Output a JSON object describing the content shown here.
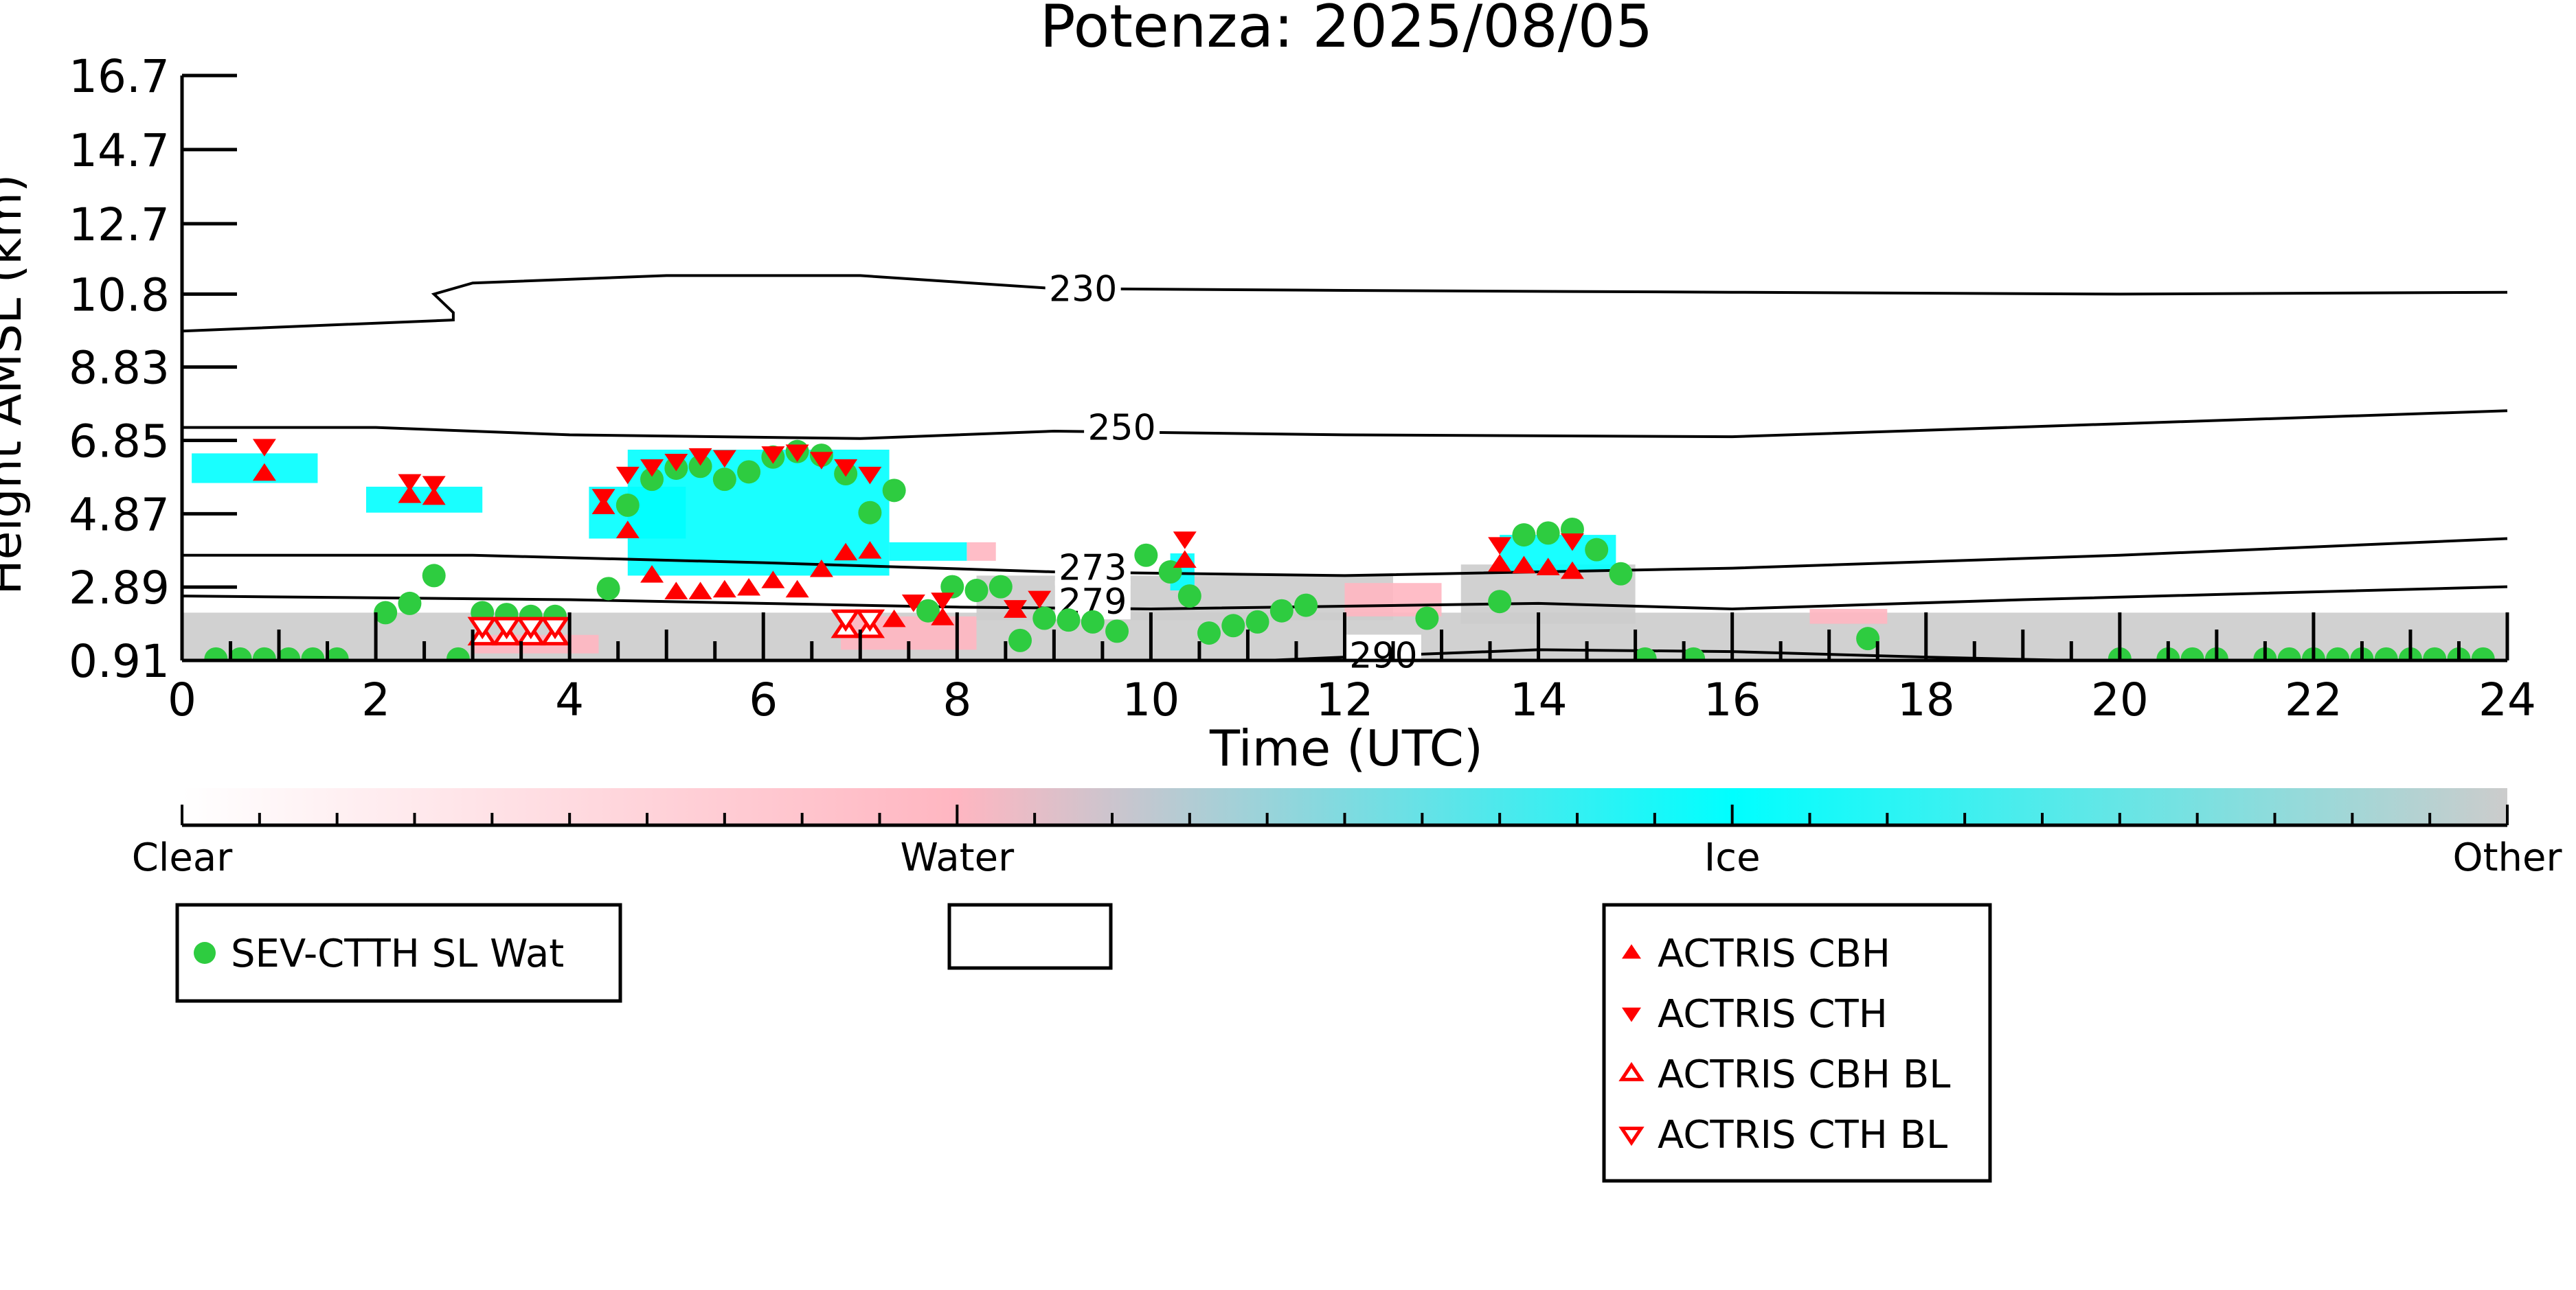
{
  "chart_data": {
    "type": "scatter",
    "title": "Potenza: 2025/08/05",
    "xlabel": "Time (UTC)",
    "ylabel": "Height AMSL (km)",
    "xlim": [
      0,
      24
    ],
    "ylim": [
      0.91,
      16.7
    ],
    "x_ticks": [
      0,
      2,
      4,
      6,
      8,
      10,
      12,
      14,
      16,
      18,
      20,
      22,
      24
    ],
    "x_tick_labels": [
      "0",
      "2",
      "4",
      "6",
      "8",
      "10",
      "12",
      "14",
      "16",
      "18",
      "20",
      "22",
      "24"
    ],
    "y_ticks": [
      0.91,
      2.89,
      4.87,
      6.85,
      8.83,
      10.8,
      12.7,
      14.7,
      16.7
    ],
    "y_tick_labels": [
      "0.91",
      "2.89",
      "4.87",
      "6.85",
      "8.83",
      "10.8",
      "12.7",
      "14.7",
      "16.7"
    ],
    "grid": false,
    "colors": {
      "ice": "#00ffff",
      "water": "#ffb6c1",
      "other": "#cccccc",
      "sev": "#2ecc40",
      "actris": "#ff0000"
    },
    "cloud_regions": [
      {
        "kind": "other",
        "x0": 0.0,
        "x1": 24.0,
        "y0": 0.91,
        "y1": 2.2
      },
      {
        "kind": "water",
        "x0": 3.0,
        "x1": 4.3,
        "y0": 1.1,
        "y1": 1.6
      },
      {
        "kind": "water",
        "x0": 6.8,
        "x1": 8.2,
        "y0": 1.2,
        "y1": 2.1
      },
      {
        "kind": "other",
        "x0": 8.2,
        "x1": 12.5,
        "y0": 2.0,
        "y1": 3.2
      },
      {
        "kind": "water",
        "x0": 12.0,
        "x1": 13.0,
        "y0": 2.1,
        "y1": 3.0
      },
      {
        "kind": "other",
        "x0": 13.2,
        "x1": 15.0,
        "y0": 1.9,
        "y1": 3.5
      },
      {
        "kind": "water",
        "x0": 16.8,
        "x1": 17.6,
        "y0": 1.9,
        "y1": 2.3
      },
      {
        "kind": "ice",
        "x0": 4.6,
        "x1": 7.3,
        "y0": 3.2,
        "y1": 6.6
      },
      {
        "kind": "ice",
        "x0": 4.2,
        "x1": 5.2,
        "y0": 4.2,
        "y1": 5.6
      },
      {
        "kind": "ice",
        "x0": 0.1,
        "x1": 1.4,
        "y0": 5.7,
        "y1": 6.5
      },
      {
        "kind": "ice",
        "x0": 1.9,
        "x1": 3.1,
        "y0": 4.9,
        "y1": 5.6
      },
      {
        "kind": "ice",
        "x0": 13.6,
        "x1": 14.8,
        "y0": 3.3,
        "y1": 4.3
      },
      {
        "kind": "ice",
        "x0": 10.2,
        "x1": 10.45,
        "y0": 2.8,
        "y1": 3.8
      },
      {
        "kind": "ice",
        "x0": 7.3,
        "x1": 8.1,
        "y0": 3.6,
        "y1": 4.1
      },
      {
        "kind": "water",
        "x0": 8.1,
        "x1": 8.4,
        "y0": 3.6,
        "y1": 4.1
      }
    ],
    "contours": [
      {
        "label": "230",
        "label_at": [
          9.3,
          10.95
        ],
        "points": [
          [
            0,
            9.8
          ],
          [
            2.8,
            10.1
          ],
          [
            2.8,
            10.3
          ],
          [
            2.6,
            10.8
          ],
          [
            3.0,
            11.1
          ],
          [
            5.0,
            11.3
          ],
          [
            7.0,
            11.3
          ],
          [
            9.0,
            10.95
          ],
          [
            12.0,
            10.9
          ],
          [
            16.0,
            10.85
          ],
          [
            20.0,
            10.8
          ],
          [
            24.0,
            10.85
          ]
        ]
      },
      {
        "label": "250",
        "label_at": [
          9.7,
          7.2
        ],
        "points": [
          [
            0,
            7.2
          ],
          [
            2.0,
            7.2
          ],
          [
            4.0,
            7.0
          ],
          [
            7.0,
            6.9
          ],
          [
            9.0,
            7.1
          ],
          [
            12.0,
            7.0
          ],
          [
            16.0,
            6.95
          ],
          [
            20.0,
            7.3
          ],
          [
            24.0,
            7.65
          ]
        ]
      },
      {
        "label": "273",
        "label_at": [
          9.4,
          3.42
        ],
        "points": [
          [
            0,
            3.75
          ],
          [
            3.0,
            3.75
          ],
          [
            6.0,
            3.55
          ],
          [
            9.0,
            3.3
          ],
          [
            12.0,
            3.2
          ],
          [
            16.0,
            3.4
          ],
          [
            20.0,
            3.75
          ],
          [
            24.0,
            4.2
          ]
        ]
      },
      {
        "label": "279",
        "label_at": [
          9.4,
          2.5
        ],
        "points": [
          [
            0,
            2.65
          ],
          [
            4.0,
            2.55
          ],
          [
            8.0,
            2.35
          ],
          [
            10.0,
            2.3
          ],
          [
            14.0,
            2.45
          ],
          [
            16.0,
            2.3
          ],
          [
            19.0,
            2.55
          ],
          [
            24.0,
            2.9
          ]
        ]
      },
      {
        "label": "290",
        "label_at": [
          12.4,
          1.05
        ],
        "points": [
          [
            11.2,
            0.91
          ],
          [
            12.0,
            1.0
          ],
          [
            14.0,
            1.2
          ],
          [
            16.0,
            1.15
          ],
          [
            18.0,
            1.0
          ],
          [
            19.5,
            0.91
          ]
        ]
      }
    ],
    "series": [
      {
        "name": "SEV-CTTH SL Wat",
        "marker": "circle",
        "points": [
          [
            0.35,
            0.95
          ],
          [
            0.6,
            0.95
          ],
          [
            0.85,
            0.95
          ],
          [
            1.1,
            0.95
          ],
          [
            1.35,
            0.95
          ],
          [
            1.6,
            0.95
          ],
          [
            2.1,
            2.2
          ],
          [
            2.35,
            2.45
          ],
          [
            2.6,
            3.2
          ],
          [
            2.85,
            0.95
          ],
          [
            3.1,
            2.2
          ],
          [
            3.35,
            2.15
          ],
          [
            3.6,
            2.1
          ],
          [
            3.85,
            2.1
          ],
          [
            4.4,
            2.85
          ],
          [
            4.6,
            5.1
          ],
          [
            4.85,
            5.8
          ],
          [
            5.1,
            6.1
          ],
          [
            5.35,
            6.15
          ],
          [
            5.6,
            5.8
          ],
          [
            5.85,
            6.0
          ],
          [
            6.1,
            6.4
          ],
          [
            6.35,
            6.55
          ],
          [
            6.6,
            6.45
          ],
          [
            6.85,
            5.95
          ],
          [
            7.35,
            5.5
          ],
          [
            7.1,
            4.9
          ],
          [
            7.95,
            2.9
          ],
          [
            8.2,
            2.8
          ],
          [
            8.45,
            2.9
          ],
          [
            7.7,
            2.25
          ],
          [
            8.65,
            1.45
          ],
          [
            8.9,
            2.05
          ],
          [
            9.15,
            2.0
          ],
          [
            9.4,
            1.95
          ],
          [
            9.65,
            1.7
          ],
          [
            9.95,
            3.75
          ],
          [
            10.2,
            3.3
          ],
          [
            10.4,
            2.65
          ],
          [
            10.6,
            1.65
          ],
          [
            10.85,
            1.85
          ],
          [
            11.1,
            1.95
          ],
          [
            11.35,
            2.25
          ],
          [
            11.6,
            2.4
          ],
          [
            12.85,
            2.05
          ],
          [
            13.6,
            2.5
          ],
          [
            13.85,
            4.3
          ],
          [
            14.1,
            4.35
          ],
          [
            14.35,
            4.45
          ],
          [
            14.6,
            3.9
          ],
          [
            14.85,
            3.25
          ],
          [
            15.1,
            0.95
          ],
          [
            15.6,
            0.95
          ],
          [
            17.4,
            1.5
          ],
          [
            20.0,
            0.95
          ],
          [
            20.5,
            0.95
          ],
          [
            20.75,
            0.95
          ],
          [
            21.0,
            0.95
          ],
          [
            21.5,
            0.95
          ],
          [
            21.75,
            0.95
          ],
          [
            22.0,
            0.95
          ],
          [
            22.25,
            0.95
          ],
          [
            22.5,
            0.95
          ],
          [
            22.75,
            0.95
          ],
          [
            23.0,
            0.95
          ],
          [
            23.25,
            0.95
          ],
          [
            23.5,
            0.95
          ],
          [
            23.75,
            0.95
          ]
        ]
      },
      {
        "name": "ACTRIS CBH",
        "marker": "triangle-up",
        "points": [
          [
            0.85,
            5.95
          ],
          [
            2.35,
            5.35
          ],
          [
            2.6,
            5.3
          ],
          [
            4.35,
            5.05
          ],
          [
            4.6,
            4.4
          ],
          [
            4.85,
            3.2
          ],
          [
            5.1,
            2.75
          ],
          [
            5.35,
            2.75
          ],
          [
            5.6,
            2.8
          ],
          [
            5.85,
            2.85
          ],
          [
            6.1,
            3.05
          ],
          [
            6.35,
            2.8
          ],
          [
            6.6,
            3.35
          ],
          [
            6.85,
            3.8
          ],
          [
            7.1,
            3.85
          ],
          [
            7.35,
            2.0
          ],
          [
            7.85,
            2.05
          ],
          [
            8.6,
            2.25
          ],
          [
            10.35,
            3.6
          ],
          [
            13.6,
            3.5
          ],
          [
            13.85,
            3.45
          ],
          [
            14.1,
            3.4
          ],
          [
            14.35,
            3.3
          ]
        ]
      },
      {
        "name": "ACTRIS CTH",
        "marker": "triangle-down",
        "points": [
          [
            0.85,
            6.7
          ],
          [
            2.35,
            5.75
          ],
          [
            2.6,
            5.7
          ],
          [
            4.35,
            5.35
          ],
          [
            4.6,
            5.95
          ],
          [
            4.85,
            6.15
          ],
          [
            5.1,
            6.3
          ],
          [
            5.35,
            6.45
          ],
          [
            5.6,
            6.4
          ],
          [
            6.1,
            6.5
          ],
          [
            6.35,
            6.55
          ],
          [
            6.6,
            6.35
          ],
          [
            6.85,
            6.15
          ],
          [
            7.1,
            5.95
          ],
          [
            7.55,
            2.5
          ],
          [
            7.85,
            2.55
          ],
          [
            8.6,
            2.35
          ],
          [
            8.85,
            2.6
          ],
          [
            10.35,
            4.2
          ],
          [
            13.6,
            4.05
          ],
          [
            14.35,
            4.15
          ]
        ]
      },
      {
        "name": "ACTRIS CBH BL",
        "marker": "triangle-up-open",
        "points": [
          [
            3.1,
            1.55
          ],
          [
            3.35,
            1.55
          ],
          [
            3.6,
            1.55
          ],
          [
            3.85,
            1.55
          ],
          [
            6.85,
            1.75
          ],
          [
            7.1,
            1.75
          ]
        ]
      },
      {
        "name": "ACTRIS CTH BL",
        "marker": "triangle-down-open",
        "points": [
          [
            3.1,
            1.85
          ],
          [
            3.35,
            1.85
          ],
          [
            3.6,
            1.85
          ],
          [
            3.85,
            1.85
          ],
          [
            6.85,
            2.05
          ],
          [
            7.1,
            2.05
          ]
        ]
      }
    ],
    "colorbar": {
      "labels": [
        "Clear",
        "Water",
        "Ice",
        "Other"
      ],
      "stops": [
        {
          "pos": 0.0,
          "color": "#ffffff"
        },
        {
          "pos": 0.333,
          "color": "#ffb6c1"
        },
        {
          "pos": 0.667,
          "color": "#00ffff"
        },
        {
          "pos": 1.0,
          "color": "#cccccc"
        }
      ]
    },
    "legends": [
      {
        "position": "bottom-left",
        "entries": [
          "SEV-CTTH SL Wat"
        ]
      },
      {
        "position": "bottom-center",
        "entries": []
      },
      {
        "position": "bottom-right",
        "entries": [
          "ACTRIS CBH",
          "ACTRIS CTH",
          "ACTRIS CBH BL",
          "ACTRIS CTH BL"
        ]
      }
    ]
  }
}
